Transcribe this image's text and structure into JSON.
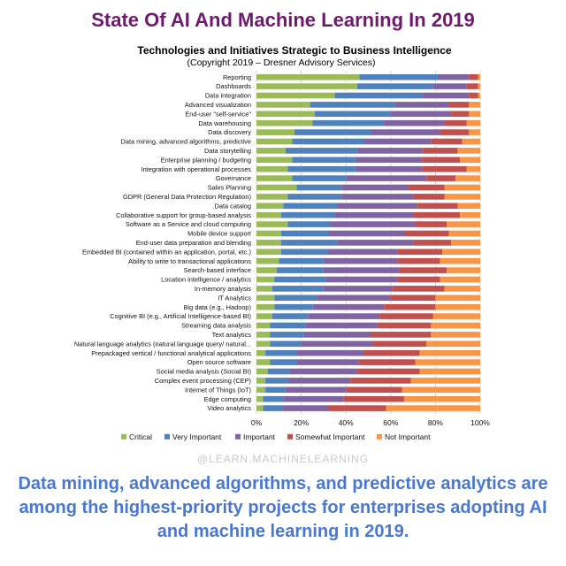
{
  "headline": "State Of AI And Machine Learning In 2019",
  "watermark": "@LEARN.MACHINELEARNING",
  "caption": "Data mining, advanced algorithms, and predictive analytics are among the highest-priority projects for enterprises adopting AI and machine learning in 2019.",
  "colors": {
    "headline": "#6e1a6e",
    "caption": "#4a78d0",
    "series": [
      "#9bbb59",
      "#4f81bd",
      "#8064a2",
      "#c0504d",
      "#f79646"
    ]
  },
  "chart_data": {
    "type": "bar",
    "orientation": "horizontal",
    "stacked": true,
    "title": "Technologies and Initiatives Strategic to Business Intelligence",
    "subtitle": "(Copyright 2019 – Dresner Advisory Services)",
    "xlim": [
      0,
      100
    ],
    "x_ticks": [
      "0%",
      "20%",
      "40%",
      "60%",
      "80%",
      "100%"
    ],
    "grid": "vertical dashed",
    "legend_position": "bottom",
    "categories": [
      "Reporting",
      "Dashboards",
      "Data integration",
      "Advanced visualization",
      "End-user \"self-service\"",
      "Data warehousing",
      "Data discovery",
      "Data mining, advanced algorithms, predictive",
      "Data storytelling",
      "Enterprise planning / budgeting",
      "Integration with operational processes",
      "Governance",
      "Sales Planning",
      "GDPR (General Data Protection Regulation)",
      "Data catalog",
      "Collaborative support for group-based analysis",
      "Software as a Service and cloud computing",
      "Mobile device support",
      "End-user data preparation and blending",
      "Embedded BI (contained within an application, portal, etc.)",
      "Ability to write to transactional applications",
      "Search-based interface",
      "Location intelligence / analytics",
      "In-memory analysis",
      "IT Analytics",
      "Big data (e.g., Hadoop)",
      "Cognitive BI (e.g., Artificial Intelligence-based BI)",
      "Streaming data analysis",
      "Text analytics",
      "Natural language analytics (natural language query/ natural...",
      "Prepackaged vertical / functional analytical applications",
      "Open source software",
      "Social media analysis (Social BI)",
      "Complex event processing (CEP)",
      "Internet of Things (IoT)",
      "Edge computing",
      "Video analytics"
    ],
    "series": [
      {
        "name": "Critical",
        "values": [
          46,
          45,
          35,
          24,
          26,
          25,
          17,
          16,
          13,
          16,
          14,
          16,
          18,
          14,
          12,
          11,
          14,
          11,
          11,
          11,
          10,
          9,
          8,
          7,
          8,
          8,
          7,
          6,
          6,
          6,
          4,
          6,
          5,
          4,
          4,
          3,
          3
        ]
      },
      {
        "name": "Very Important",
        "values": [
          35,
          34,
          39,
          38,
          34,
          32,
          34,
          32,
          32,
          28,
          30,
          24,
          20,
          24,
          24,
          24,
          19,
          21,
          25,
          21,
          20,
          21,
          23,
          23,
          19,
          17,
          16,
          16,
          15,
          14,
          14,
          12,
          10,
          10,
          9,
          9,
          9
        ]
      },
      {
        "name": "Important",
        "values": [
          14,
          15,
          21,
          24,
          27,
          27,
          31,
          30,
          29,
          30,
          30,
          36,
          30,
          32,
          36,
          35,
          38,
          34,
          34,
          31,
          33,
          34,
          32,
          31,
          33,
          32,
          32,
          32,
          30,
          32,
          30,
          28,
          30,
          28,
          27,
          27,
          20
        ]
      },
      {
        "name": "Somewhat Important",
        "values": [
          4,
          5,
          4,
          9,
          8,
          10,
          13,
          14,
          16,
          17,
          20,
          13,
          16,
          14,
          18,
          21,
          14,
          20,
          17,
          20,
          19,
          21,
          19,
          23,
          20,
          23,
          24,
          24,
          27,
          24,
          25,
          25,
          28,
          27,
          25,
          27,
          26
        ]
      },
      {
        "name": "Not Important",
        "values": [
          1,
          1,
          1,
          5,
          5,
          6,
          5,
          8,
          10,
          9,
          6,
          11,
          16,
          16,
          10,
          9,
          15,
          14,
          13,
          17,
          18,
          15,
          18,
          16,
          20,
          20,
          21,
          22,
          22,
          24,
          27,
          29,
          27,
          31,
          35,
          34,
          42
        ]
      }
    ]
  }
}
